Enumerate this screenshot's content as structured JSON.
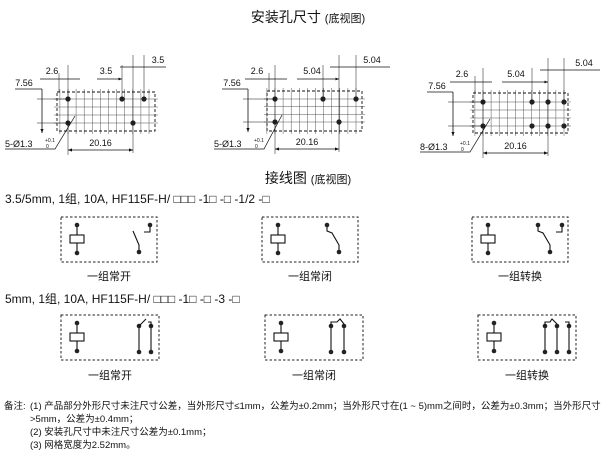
{
  "mounting": {
    "title": "安装孔尺寸",
    "subtitle": "(底视图)",
    "diagrams": [
      {
        "row_pitch": "7.56",
        "first_offset": "2.6",
        "pitch_a": "3.5",
        "pitch_b": "3.5",
        "span": "20.16",
        "holes": "5-Ø1.3",
        "tol_upper": "+0.1",
        "tol_lower": "0"
      },
      {
        "row_pitch": "7.56",
        "first_offset": "2.6",
        "pitch_a": "5.04",
        "pitch_b": "5.04",
        "span": "20.16",
        "holes": "5-Ø1.3",
        "tol_upper": "+0.1",
        "tol_lower": "0"
      },
      {
        "row_pitch": "7.56",
        "first_offset": "2.6",
        "pitch_a": "5.04",
        "pitch_b": "5.04",
        "span": "20.16",
        "holes": "8-Ø1.3",
        "tol_upper": "+0.1",
        "tol_lower": "0"
      }
    ]
  },
  "wiring": {
    "title": "接线图",
    "subtitle": "(底视图)",
    "rows": [
      {
        "label": "3.5/5mm,  1组, 10A,  HF115F-H/ □□□ -1□ -□ -1/2 -□",
        "items": [
          "一组常开",
          "一组常闭",
          "一组转换"
        ]
      },
      {
        "label": "5mm,  1组, 10A,  HF115F-H/ □□□ -1□ -□ -3 -□",
        "items": [
          "一组常开",
          "一组常闭",
          "一组转换"
        ]
      }
    ]
  },
  "notes": {
    "label": "备注:",
    "items": [
      "(1) 产品部分外形尺寸未注尺寸公差，当外形尺寸≤1mm，公差为±0.2mm；当外形尺寸在(1 ~ 5)mm之间时，公差为±0.3mm；当外形尺寸>5mm，公差为±0.4mm；",
      "(2) 安装孔尺寸中未注尺寸公差为±0.1mm；",
      "(3) 网格宽度为2.52mm。"
    ]
  }
}
